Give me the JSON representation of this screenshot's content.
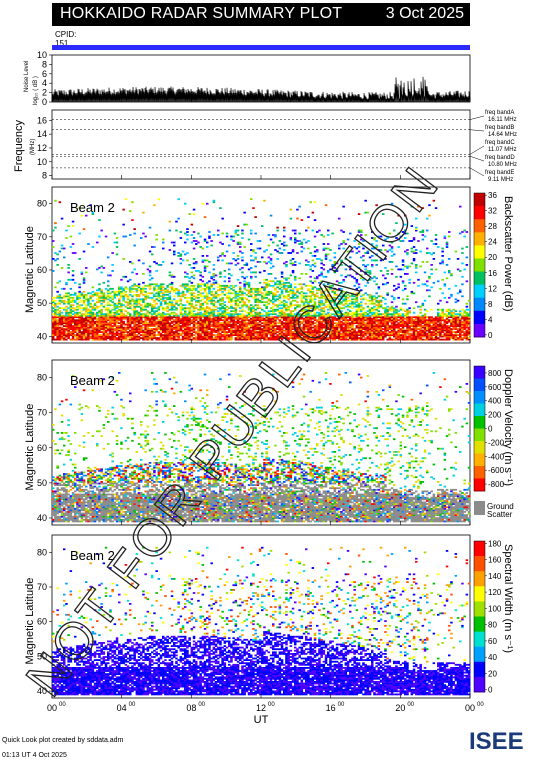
{
  "header": {
    "title": "HOKKAIDO RADAR SUMMARY PLOT",
    "date": "3 Oct 2025",
    "cpid_label": "CPID:",
    "cpid_value": "151"
  },
  "noise_panel": {
    "ylabel": "Noise Level",
    "ylabel_sub": "log₁₀ ( dB )",
    "ticks": [
      "0",
      "2",
      "4",
      "6",
      "8",
      "10"
    ],
    "ylim": [
      0,
      10
    ]
  },
  "frequency_panel": {
    "ylabel": "Frequency",
    "ylabel_sub": "(MHz)",
    "ticks": [
      "8",
      "10",
      "12",
      "14",
      "16"
    ],
    "ylim": [
      7.5,
      17.5
    ],
    "bands": [
      {
        "name": "freq bandA",
        "value": "16.11 MHz",
        "mhz": 16.11
      },
      {
        "name": "freq bandB",
        "value": "14.64 MHz",
        "mhz": 14.64
      },
      {
        "name": "freq bandC",
        "value": "11.07 MHz",
        "mhz": 11.07
      },
      {
        "name": "freq bandD",
        "value": "10.80 MHz",
        "mhz": 10.8
      },
      {
        "name": "freq bandE",
        "value": "9.11 MHz",
        "mhz": 9.11
      }
    ]
  },
  "panels": [
    {
      "id": "power",
      "beam_label": "Beam 2",
      "ylabel": "Magnetic Latitude",
      "colorbar_title": "Backscatter Power (dB)",
      "colorbar_ticks": [
        "0",
        "4",
        "8",
        "12",
        "16",
        "20",
        "24",
        "28",
        "32",
        "36"
      ]
    },
    {
      "id": "velocity",
      "beam_label": "Beam 2",
      "ylabel": "Magnetic Latitude",
      "colorbar_title": "Doppler Velocity (m s⁻¹)",
      "colorbar_ticks": [
        "800",
        "600",
        "400",
        "200",
        "0",
        "-200",
        "-400",
        "-600",
        "-800"
      ],
      "ground_label_1": "Ground",
      "ground_label_2": "Scatter"
    },
    {
      "id": "width",
      "beam_label": "Beam 2",
      "ylabel": "Magnetic Latitude",
      "colorbar_title": "Spectral Width (m s⁻¹)",
      "colorbar_ticks": [
        "0",
        "20",
        "40",
        "60",
        "80",
        "100",
        "120",
        "140",
        "160",
        "180"
      ]
    }
  ],
  "chart_data": {
    "type": "heatmap",
    "xlabel": "UT",
    "x_ticks": [
      "00",
      "04",
      "08",
      "12",
      "16",
      "20",
      "00"
    ],
    "x_tick_sup": "00",
    "xlim_hours": [
      0,
      24
    ],
    "ylim_mlat": [
      38,
      85
    ],
    "y_ticks": [
      "40",
      "50",
      "60",
      "70",
      "80"
    ],
    "colors": {
      "power": [
        "#6a00ff",
        "#0000ff",
        "#0088ff",
        "#00d0ff",
        "#00c060",
        "#7fe000",
        "#ffff00",
        "#ffb000",
        "#ff6000",
        "#ff0000",
        "#c00000"
      ],
      "velocity": [
        "#3a00ff",
        "#0050ff",
        "#0090ff",
        "#00d0e0",
        "#00c000",
        "#80e000",
        "#e0e000",
        "#ffb000",
        "#ff6000",
        "#ff0000"
      ],
      "width": [
        "#5000ff",
        "#0000ff",
        "#00a0ff",
        "#00e0d0",
        "#00c000",
        "#a0e000",
        "#ffff00",
        "#ffa000",
        "#ff5000",
        "#ff0000"
      ],
      "ground_scatter": "#8c8c8c"
    }
  },
  "footer": {
    "credit": "Quick Look plot created by sddata.adm",
    "timestamp": "01:13 UT  4 Oct 2025"
  },
  "logo_text": "ISEE",
  "watermark": "NOT FOR PUBLICATION"
}
